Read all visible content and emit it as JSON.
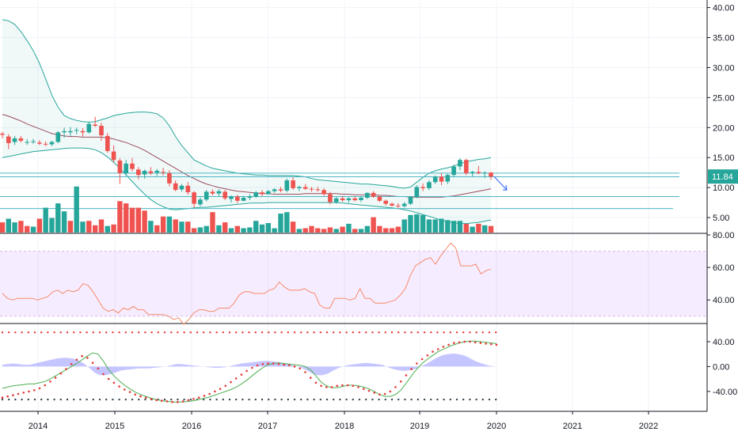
{
  "chart_data": {
    "type": "candlestick",
    "interval": "monthly",
    "x_axis": {
      "labels": [
        "2014",
        "2015",
        "2016",
        "2017",
        "2018",
        "2019",
        "2020",
        "2021",
        "2022"
      ]
    },
    "price_pane": {
      "y_range": [
        2.5,
        41
      ],
      "ticks": [
        "40.00",
        "35.00",
        "30.00",
        "25.00",
        "20.00",
        "15.00",
        "10.00",
        "5.00"
      ],
      "tick_values": [
        40,
        35,
        30,
        25,
        20,
        15,
        10,
        5
      ],
      "last_price": "11.84",
      "last_price_value": 11.84,
      "horizontal_lines": [
        12.4,
        11.8,
        8.5,
        6.5
      ],
      "candles_ohlc": [
        [
          19.0,
          19.3,
          18.2,
          18.8
        ],
        [
          18.5,
          18.9,
          16.4,
          17.4
        ],
        [
          17.6,
          18.6,
          17.1,
          18.2
        ],
        [
          18.2,
          18.6,
          17.5,
          17.8
        ],
        [
          17.6,
          18.1,
          17.1,
          17.6
        ],
        [
          17.7,
          18.1,
          17.3,
          17.7
        ],
        [
          17.5,
          17.9,
          17.1,
          17.3
        ],
        [
          17.3,
          17.7,
          16.9,
          17.2
        ],
        [
          17.2,
          17.8,
          16.9,
          17.6
        ],
        [
          17.6,
          19.4,
          17.4,
          19.2
        ],
        [
          19.2,
          20.0,
          18.3,
          19.4
        ],
        [
          19.2,
          20.1,
          18.6,
          19.4
        ],
        [
          19.5,
          20.0,
          18.9,
          19.6
        ],
        [
          19.4,
          19.9,
          18.5,
          19.2
        ],
        [
          19.2,
          21.0,
          19.0,
          20.6
        ],
        [
          20.5,
          21.8,
          20.1,
          20.3
        ],
        [
          20.3,
          20.8,
          17.8,
          18.7
        ],
        [
          18.6,
          19.1,
          15.8,
          16.1
        ],
        [
          16.0,
          17.0,
          14.2,
          14.6
        ],
        [
          14.5,
          14.9,
          10.6,
          12.4
        ],
        [
          12.4,
          14.6,
          12.0,
          14.0
        ],
        [
          14.0,
          14.9,
          12.7,
          13.1
        ],
        [
          13.0,
          13.4,
          11.4,
          12.1
        ],
        [
          12.2,
          13.0,
          11.5,
          12.8
        ],
        [
          12.7,
          13.4,
          12.1,
          12.4
        ],
        [
          12.5,
          13.1,
          11.9,
          12.8
        ],
        [
          12.6,
          13.3,
          12.0,
          12.5
        ],
        [
          12.4,
          12.9,
          10.2,
          10.7
        ],
        [
          10.7,
          11.2,
          9.4,
          9.6
        ],
        [
          9.7,
          10.6,
          9.3,
          10.3
        ],
        [
          10.3,
          10.9,
          8.8,
          9.2
        ],
        [
          9.2,
          9.4,
          6.6,
          7.3
        ],
        [
          7.2,
          8.4,
          6.9,
          8.0
        ],
        [
          8.0,
          9.6,
          7.7,
          9.3
        ],
        [
          9.3,
          9.7,
          8.7,
          9.0
        ],
        [
          9.0,
          9.7,
          8.5,
          9.4
        ],
        [
          9.3,
          9.6,
          7.9,
          8.2
        ],
        [
          8.1,
          8.7,
          7.5,
          8.5
        ],
        [
          8.5,
          8.8,
          7.4,
          7.8
        ],
        [
          7.8,
          8.6,
          7.7,
          8.3
        ],
        [
          8.3,
          8.9,
          7.9,
          8.5
        ],
        [
          8.5,
          9.4,
          8.3,
          9.2
        ],
        [
          9.2,
          9.6,
          8.6,
          8.9
        ],
        [
          8.9,
          9.6,
          8.8,
          9.4
        ],
        [
          9.4,
          9.9,
          9.1,
          9.7
        ],
        [
          9.7,
          10.1,
          9.2,
          9.5
        ],
        [
          9.5,
          11.5,
          9.2,
          11.2
        ],
        [
          11.2,
          11.7,
          9.6,
          9.9
        ],
        [
          9.9,
          10.3,
          9.4,
          10.1
        ],
        [
          10.1,
          10.6,
          9.6,
          9.8
        ],
        [
          9.8,
          10.1,
          9.3,
          9.7
        ],
        [
          9.7,
          10.1,
          9.3,
          9.6
        ],
        [
          9.6,
          9.9,
          8.6,
          8.9
        ],
        [
          8.9,
          9.3,
          7.2,
          7.6
        ],
        [
          7.6,
          8.4,
          7.3,
          8.2
        ],
        [
          8.2,
          8.6,
          7.6,
          7.9
        ],
        [
          7.9,
          8.4,
          7.5,
          8.2
        ],
        [
          8.2,
          8.5,
          7.7,
          7.9
        ],
        [
          7.9,
          8.6,
          7.6,
          8.3
        ],
        [
          8.3,
          9.2,
          8.1,
          9.1
        ],
        [
          9.1,
          9.4,
          8.3,
          8.5
        ],
        [
          8.5,
          8.6,
          7.6,
          7.8
        ],
        [
          7.8,
          8.0,
          7.0,
          7.3
        ],
        [
          7.3,
          7.5,
          6.8,
          7.0
        ],
        [
          7.0,
          7.4,
          6.6,
          6.9
        ],
        [
          6.9,
          7.6,
          6.7,
          7.3
        ],
        [
          7.3,
          8.6,
          7.1,
          8.4
        ],
        [
          8.4,
          10.4,
          8.2,
          10.1
        ],
        [
          10.1,
          10.7,
          9.4,
          9.9
        ],
        [
          9.9,
          11.2,
          9.6,
          10.9
        ],
        [
          10.9,
          12.0,
          10.6,
          11.8
        ],
        [
          11.8,
          12.4,
          10.4,
          11.0
        ],
        [
          11.0,
          12.3,
          10.6,
          12.1
        ],
        [
          12.1,
          13.8,
          11.8,
          13.5
        ],
        [
          13.5,
          14.9,
          12.9,
          14.6
        ],
        [
          14.6,
          14.8,
          12.1,
          12.4
        ],
        [
          12.4,
          12.8,
          11.9,
          12.6
        ],
        [
          12.6,
          13.6,
          12.2,
          12.4
        ],
        [
          12.4,
          12.7,
          11.6,
          12.5
        ],
        [
          12.5,
          12.6,
          11.3,
          11.84
        ]
      ],
      "volume": [
        1.4,
        1.9,
        1.4,
        1.6,
        0.9,
        0.8,
        1.9,
        3.4,
        2.0,
        4.0,
        2.9,
        1.6,
        6.3,
        1.5,
        1.6,
        1.0,
        1.8,
        0.9,
        1.1,
        4.3,
        4.0,
        3.4,
        3.4,
        3.0,
        1.6,
        1.0,
        2.2,
        2.2,
        1.8,
        1.5,
        1.5,
        0.6,
        0.7,
        0.9,
        2.8,
        1.0,
        1.4,
        0.6,
        0.9,
        0.6,
        0.7,
        1.6,
        1.1,
        1.3,
        0.6,
        2.6,
        2.8,
        1.5,
        0.5,
        0.6,
        0.9,
        0.6,
        0.5,
        0.7,
        0.5,
        0.8,
        1.2,
        0.5,
        0.5,
        0.9,
        2.1,
        0.9,
        0.6,
        0.6,
        0.8,
        1.8,
        2.4,
        2.5,
        2.4,
        1.8,
        1.8,
        1.9,
        1.7,
        1.6,
        1.6,
        1.2,
        0.8,
        1.2,
        1.0,
        0.9
      ],
      "volume_colors": [
        "down",
        "up",
        "up",
        "down",
        "down",
        "up",
        "down",
        "up",
        "up",
        "up",
        "up",
        "down",
        "up",
        "up",
        "down",
        "down",
        "down",
        "up",
        "down",
        "down",
        "down",
        "down",
        "down",
        "down",
        "up",
        "down",
        "down",
        "up",
        "down",
        "up",
        "down",
        "down",
        "up",
        "up",
        "down",
        "up",
        "down",
        "up",
        "down",
        "up",
        "up",
        "up",
        "up",
        "up",
        "up",
        "up",
        "up",
        "down",
        "up",
        "down",
        "down",
        "down",
        "down",
        "down",
        "up",
        "down",
        "up",
        "down",
        "up",
        "up",
        "down",
        "down",
        "down",
        "down",
        "down",
        "up",
        "up",
        "up",
        "up",
        "up",
        "up",
        "up",
        "up",
        "up",
        "up",
        "down",
        "up",
        "down",
        "up",
        "down"
      ],
      "bollinger": {
        "upper": [
          38.0,
          37.8,
          37.2,
          36.0,
          34.5,
          32.8,
          30.7,
          28.1,
          25.4,
          23.4,
          22.0,
          21.5,
          21.2,
          21.0,
          20.9,
          21.0,
          21.3,
          21.6,
          22.0,
          22.2,
          22.4,
          22.5,
          22.6,
          22.6,
          22.5,
          22.3,
          21.6,
          20.3,
          18.5,
          17.0,
          15.8,
          14.6,
          14.1,
          13.6,
          13.2,
          13.0,
          12.8,
          12.6,
          12.4,
          12.3,
          12.2,
          12.1,
          12.1,
          12.0,
          12.0,
          12.0,
          12.0,
          12.0,
          11.9,
          11.8,
          11.5,
          11.3,
          11.2,
          11.1,
          11.0,
          10.9,
          10.8,
          10.7,
          10.6,
          10.6,
          10.5,
          10.4,
          10.3,
          10.2,
          10.0,
          9.9,
          10.1,
          10.9,
          11.7,
          12.4,
          12.8,
          13.1,
          13.3,
          13.6,
          14.0,
          14.3,
          14.5,
          14.7,
          14.8,
          15.0
        ],
        "middle": [
          22.2,
          21.9,
          21.5,
          21.1,
          20.6,
          20.2,
          19.8,
          19.4,
          19.0,
          18.8,
          18.6,
          18.5,
          18.5,
          18.4,
          18.4,
          18.4,
          18.4,
          18.3,
          18.1,
          17.8,
          17.5,
          17.1,
          16.7,
          16.2,
          15.6,
          15.0,
          14.4,
          13.8,
          13.2,
          12.6,
          12.0,
          11.5,
          11.0,
          10.6,
          10.3,
          10.0,
          9.8,
          9.6,
          9.4,
          9.3,
          9.2,
          9.1,
          9.0,
          9.0,
          8.9,
          8.9,
          8.9,
          8.9,
          8.9,
          9.0,
          9.0,
          9.0,
          9.0,
          9.0,
          9.0,
          8.9,
          8.9,
          8.8,
          8.8,
          8.8,
          8.8,
          8.7,
          8.7,
          8.6,
          8.5,
          8.5,
          8.4,
          8.4,
          8.4,
          8.4,
          8.4,
          8.4,
          8.5,
          8.6,
          8.8,
          9.0,
          9.2,
          9.4,
          9.6,
          9.8
        ],
        "lower": [
          15.0,
          15.2,
          15.4,
          15.6,
          15.8,
          16.0,
          16.1,
          16.2,
          16.3,
          16.4,
          16.5,
          16.6,
          16.6,
          16.6,
          16.5,
          16.3,
          15.8,
          15.1,
          14.2,
          13.2,
          12.1,
          11.0,
          9.9,
          8.9,
          8.0,
          7.3,
          6.8,
          6.4,
          6.3,
          6.4,
          6.5,
          6.6,
          6.7,
          6.7,
          6.8,
          6.9,
          7.0,
          7.1,
          7.2,
          7.3,
          7.4,
          7.4,
          7.4,
          7.5,
          7.5,
          7.5,
          7.5,
          7.5,
          7.5,
          7.5,
          7.5,
          7.5,
          7.5,
          7.5,
          7.5,
          7.4,
          7.3,
          7.2,
          7.1,
          7.0,
          6.9,
          6.8,
          6.7,
          6.6,
          6.5,
          6.3,
          6.1,
          5.8,
          5.5,
          5.2,
          4.9,
          4.5,
          4.3,
          4.1,
          4.0,
          4.0,
          4.1,
          4.2,
          4.4,
          4.6
        ]
      }
    },
    "rsi_pane": {
      "y_range": [
        26,
        80
      ],
      "ticks": [
        "80.00",
        "60.00",
        "40.00"
      ],
      "tick_values": [
        80,
        60,
        40
      ],
      "band": [
        30,
        70
      ],
      "values": [
        44,
        41,
        40,
        41,
        41,
        41,
        41,
        40,
        41,
        42,
        45,
        46,
        44,
        46,
        45,
        46,
        50,
        49,
        45,
        40,
        35,
        33,
        34,
        32,
        35,
        34,
        36,
        34,
        34,
        31,
        31,
        31,
        31,
        30,
        28,
        29,
        25,
        28,
        32,
        34,
        34,
        33,
        33,
        35,
        35,
        35,
        38,
        43,
        45,
        45,
        44,
        44,
        44,
        46,
        47,
        51,
        48,
        46,
        46,
        46,
        47,
        45,
        44,
        37,
        35,
        35,
        41,
        41,
        41,
        40,
        41,
        47,
        41,
        41,
        38,
        38,
        38,
        39,
        40,
        43,
        47,
        55,
        61,
        63,
        65,
        66,
        62,
        67,
        71,
        75,
        72,
        61,
        61,
        61,
        62,
        56,
        58,
        59
      ]
    },
    "macd_pane": {
      "y_range": [
        -72,
        68
      ],
      "ticks": [
        "40.00",
        "0.00",
        "-40.00"
      ],
      "tick_values": [
        40,
        0,
        -40
      ],
      "dotted_levels": [
        55,
        -53
      ],
      "histogram": [
        3,
        4,
        5,
        4,
        3,
        3,
        5,
        7,
        9,
        11,
        13,
        14,
        14,
        13,
        10,
        5,
        -2,
        -10,
        -14,
        -14,
        -12,
        -9,
        -6,
        -5,
        -4,
        -3,
        -3,
        -3,
        -2,
        -1,
        0,
        2,
        4,
        4,
        3,
        2,
        1,
        0,
        -1,
        -2,
        -2,
        -1,
        1,
        3,
        5,
        6,
        7,
        8,
        9,
        9,
        8,
        7,
        5,
        3,
        1,
        -2,
        -6,
        -11,
        -14,
        -14,
        -11,
        -6,
        -2,
        1,
        3,
        4,
        5,
        6,
        5,
        4,
        3,
        -1,
        -4,
        -6,
        -7,
        -6,
        -4,
        0,
        4,
        9,
        14,
        18,
        20,
        21,
        20,
        18,
        14,
        9,
        6,
        3,
        1,
        0
      ],
      "macd_line": [
        -35,
        -33,
        -31,
        -30,
        -29,
        -28,
        -28,
        -26,
        -24,
        -20,
        -15,
        -10,
        -5,
        0,
        5,
        11,
        17,
        22,
        20,
        9,
        -5,
        -15,
        -23,
        -30,
        -36,
        -41,
        -45,
        -48,
        -51,
        -53,
        -55,
        -56,
        -57,
        -57,
        -57,
        -56,
        -55,
        -53,
        -51,
        -49,
        -46,
        -43,
        -40,
        -37,
        -33,
        -28,
        -22,
        -15,
        -8,
        -2,
        3,
        5,
        6,
        5,
        4,
        3,
        2,
        0,
        -5,
        -15,
        -25,
        -31,
        -34,
        -34,
        -32,
        -30,
        -30,
        -31,
        -33,
        -36,
        -40,
        -45,
        -48,
        -48,
        -45,
        -38,
        -27,
        -15,
        -4,
        5,
        12,
        18,
        24,
        28,
        32,
        35,
        38,
        40,
        41,
        41,
        40,
        39,
        38,
        37
      ],
      "signal_dots": [
        -50,
        -48,
        -46,
        -44,
        -42,
        -40,
        -38,
        -35,
        -30,
        -24,
        -18,
        -11,
        -4,
        4,
        11,
        17,
        14,
        6,
        -3,
        -12,
        -20,
        -26,
        -32,
        -37,
        -41,
        -45,
        -48,
        -50,
        -52,
        -54,
        -55,
        -56,
        -57,
        -57,
        -56,
        -54,
        -52,
        -50,
        -47,
        -44,
        -40,
        -36,
        -31,
        -25,
        -19,
        -13,
        -7,
        -2,
        2,
        4,
        5,
        5,
        4,
        3,
        2,
        0,
        -3,
        -9,
        -18,
        -26,
        -31,
        -33,
        -33,
        -31,
        -30,
        -30,
        -31,
        -33,
        -36,
        -39,
        -42,
        -45,
        -44,
        -40,
        -33,
        -24,
        -14,
        -4,
        5,
        12,
        18,
        24,
        28,
        32,
        35,
        38,
        39,
        40,
        40,
        39,
        38,
        37,
        36,
        35
      ]
    }
  }
}
